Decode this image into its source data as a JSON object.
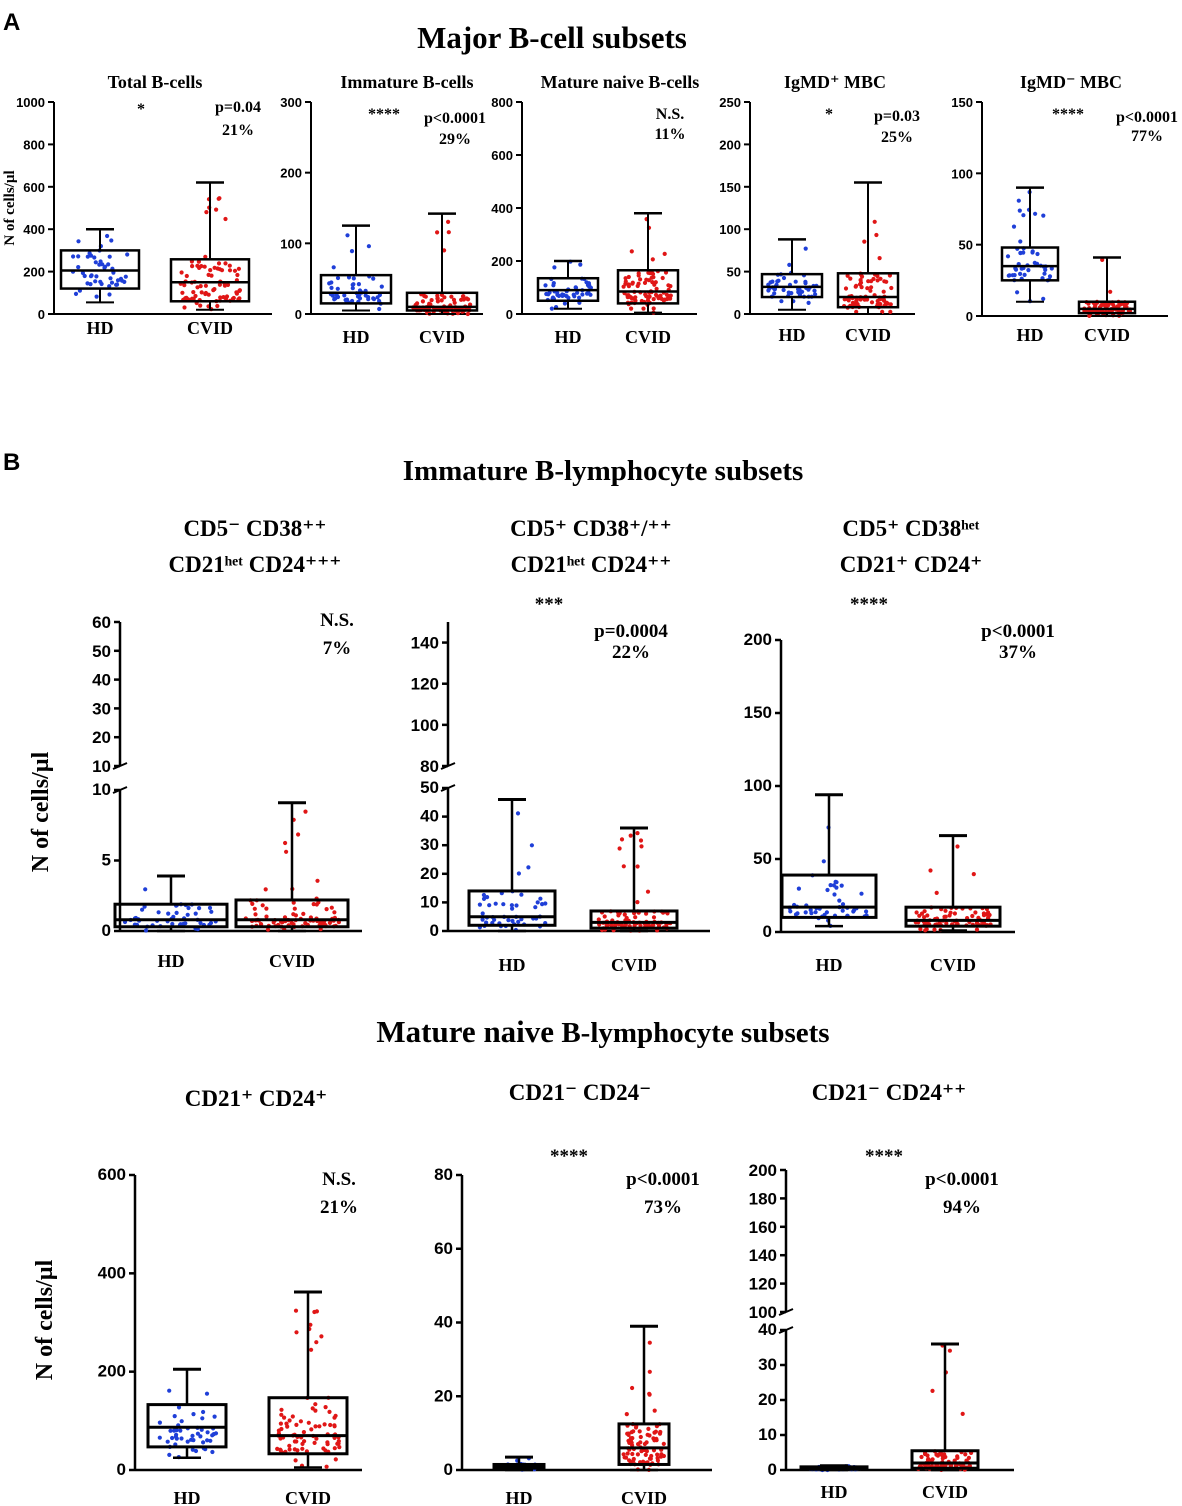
{
  "figure": {
    "panel_a_letter": "A",
    "panel_b_letter": "B",
    "section_a_title": "Major B-cell subsets",
    "section_b1_title": "Immature B-lymphocyte subsets",
    "section_b2_title_big": "Mature naive",
    "section_b2_title_small": " B-lymphocyte subsets"
  },
  "colors": {
    "hd": "#1f3fd8",
    "cvid": "#e01616",
    "axis": "#000000"
  },
  "chart_data": [
    {
      "id": "a1",
      "type": "box",
      "title": "Total B-cells",
      "ylabel": "N of cells/µl",
      "categories": [
        "HD",
        "CVID"
      ],
      "ylim": [
        0,
        1000
      ],
      "ticks": [
        0,
        200,
        400,
        600,
        800,
        1000
      ],
      "tick_labels": [
        "0",
        "200",
        "400",
        "600",
        "800",
        "1000"
      ],
      "boxes": [
        {
          "min": 55,
          "q1": 120,
          "median": 205,
          "q3": 300,
          "max": 400
        },
        {
          "min": 20,
          "q1": 60,
          "median": 150,
          "q3": 258,
          "max": 620
        }
      ],
      "star": "*",
      "pvalue": "p=0.04",
      "percent": "21%"
    },
    {
      "id": "a2",
      "type": "box",
      "title": "Immature B-cells",
      "ylabel": "",
      "categories": [
        "HD",
        "CVID"
      ],
      "ylim": [
        0,
        300
      ],
      "ticks": [
        0,
        100,
        200,
        300
      ],
      "tick_labels": [
        "0",
        "100",
        "200",
        "300"
      ],
      "boxes": [
        {
          "min": 5,
          "q1": 15,
          "median": 30,
          "q3": 55,
          "max": 125
        },
        {
          "min": 0,
          "q1": 5,
          "median": 10,
          "q3": 30,
          "max": 142
        }
      ],
      "star": "****",
      "pvalue": "p<0.0001",
      "percent": "29%"
    },
    {
      "id": "a3",
      "type": "box",
      "title": "Mature naive B-cells",
      "ylabel": "",
      "categories": [
        "HD",
        "CVID"
      ],
      "ylim": [
        0,
        800
      ],
      "ticks": [
        0,
        200,
        400,
        600,
        800
      ],
      "tick_labels": [
        "0",
        "200",
        "400",
        "600",
        "800"
      ],
      "boxes": [
        {
          "min": 20,
          "q1": 50,
          "median": 90,
          "q3": 135,
          "max": 200
        },
        {
          "min": 5,
          "q1": 40,
          "median": 85,
          "q3": 165,
          "max": 380
        }
      ],
      "star": "",
      "pvalue": "N.S.",
      "percent": "11%"
    },
    {
      "id": "a4",
      "type": "box",
      "title": "IgMD⁺ MBC",
      "ylabel": "",
      "categories": [
        "HD",
        "CVID"
      ],
      "ylim": [
        0,
        250
      ],
      "ticks": [
        0,
        50,
        100,
        150,
        200,
        250
      ],
      "tick_labels": [
        "0",
        "50",
        "100",
        "150",
        "200",
        "250"
      ],
      "boxes": [
        {
          "min": 5,
          "q1": 20,
          "median": 32,
          "q3": 47,
          "max": 88
        },
        {
          "min": 0,
          "q1": 8,
          "median": 20,
          "q3": 48,
          "max": 155
        }
      ],
      "star": "*",
      "pvalue": "p=0.03",
      "percent": "25%"
    },
    {
      "id": "a5",
      "type": "box",
      "title": "IgMD⁻ MBC",
      "ylabel": "",
      "categories": [
        "HD",
        "CVID"
      ],
      "ylim": [
        0,
        150
      ],
      "ticks": [
        0,
        50,
        100,
        150
      ],
      "tick_labels": [
        "0",
        "50",
        "100",
        "150"
      ],
      "boxes": [
        {
          "min": 10,
          "q1": 25,
          "median": 35,
          "q3": 48,
          "max": 90
        },
        {
          "min": 0,
          "q1": 2,
          "median": 5,
          "q3": 10,
          "max": 41
        }
      ],
      "star": "****",
      "pvalue": "p<0.0001",
      "percent": "77%"
    },
    {
      "id": "b1",
      "type": "box",
      "title_line1": "CD5⁻ CD38⁺⁺",
      "title_line2": "CD21ʰᵉᵗ CD24⁺⁺⁺",
      "ylabel": "N of cells/µl",
      "categories": [
        "HD",
        "CVID"
      ],
      "ylim": [
        0,
        10
      ],
      "ticks": [
        0,
        5,
        10
      ],
      "tick_labels": [
        "0",
        "5",
        "10"
      ],
      "upper_ylim": [
        10,
        60
      ],
      "upper_ticks": [
        10,
        20,
        30,
        40,
        50,
        60
      ],
      "upper_tick_labels": [
        "10",
        "20",
        "30",
        "40",
        "50",
        "60"
      ],
      "boxes": [
        {
          "min": 0,
          "q1": 0.3,
          "median": 0.8,
          "q3": 1.9,
          "max": 3.9
        },
        {
          "min": 0,
          "q1": 0.3,
          "median": 0.8,
          "q3": 2.2,
          "max": 9.1
        }
      ],
      "star": "",
      "pvalue": "N.S.",
      "percent": "7%"
    },
    {
      "id": "b2",
      "type": "box",
      "title_line1": "CD5⁺ CD38⁺/⁺⁺",
      "title_line2": "CD21ʰᵉᵗ CD24⁺⁺",
      "ylabel": "",
      "categories": [
        "HD",
        "CVID"
      ],
      "ylim": [
        0,
        50
      ],
      "ticks": [
        0,
        10,
        20,
        30,
        40,
        50
      ],
      "tick_labels": [
        "0",
        "10",
        "20",
        "30",
        "40",
        "50"
      ],
      "upper_ylim": [
        80,
        150
      ],
      "upper_ticks": [
        80,
        100,
        120,
        140
      ],
      "upper_tick_labels": [
        "80",
        "100",
        "120",
        "140"
      ],
      "boxes": [
        {
          "min": 0,
          "q1": 2,
          "median": 5,
          "q3": 14,
          "max": 46
        },
        {
          "min": 0,
          "q1": 1,
          "median": 3,
          "q3": 7,
          "max": 36
        }
      ],
      "star": "***",
      "pvalue": "p=0.0004",
      "percent": "22%"
    },
    {
      "id": "b3",
      "type": "box",
      "title_line1": "CD5⁺ CD38ʰᵉᵗ",
      "title_line2": "CD21⁺ CD24⁺",
      "ylabel": "",
      "categories": [
        "HD",
        "CVID"
      ],
      "ylim": [
        0,
        200
      ],
      "ticks": [
        0,
        50,
        100,
        150,
        200
      ],
      "tick_labels": [
        "0",
        "50",
        "100",
        "150",
        "200"
      ],
      "boxes": [
        {
          "min": 4,
          "q1": 10,
          "median": 17,
          "q3": 39,
          "max": 94
        },
        {
          "min": 1,
          "q1": 4,
          "median": 8,
          "q3": 17,
          "max": 66
        }
      ],
      "star": "****",
      "pvalue": "p<0.0001",
      "percent": "37%"
    },
    {
      "id": "b4",
      "type": "box",
      "title": "CD21⁺ CD24⁺",
      "ylabel": "N of cells/µl",
      "categories": [
        "HD",
        "CVID"
      ],
      "ylim": [
        0,
        600
      ],
      "ticks": [
        0,
        200,
        400,
        600
      ],
      "tick_labels": [
        "0",
        "200",
        "400",
        "600"
      ],
      "boxes": [
        {
          "min": 25,
          "q1": 47,
          "median": 87,
          "q3": 133,
          "max": 205
        },
        {
          "min": 5,
          "q1": 33,
          "median": 70,
          "q3": 147,
          "max": 362
        }
      ],
      "star": "",
      "pvalue": "N.S.",
      "percent": "21%"
    },
    {
      "id": "b5",
      "type": "box",
      "title": "CD21⁻ CD24⁻",
      "ylabel": "",
      "categories": [
        "HD",
        "CVID"
      ],
      "ylim": [
        0,
        80
      ],
      "ticks": [
        0,
        20,
        40,
        60,
        80
      ],
      "tick_labels": [
        "0",
        "20",
        "40",
        "60",
        "80"
      ],
      "boxes": [
        {
          "min": 0,
          "q1": 0.5,
          "median": 1,
          "q3": 1.5,
          "max": 3.5
        },
        {
          "min": 0,
          "q1": 1.5,
          "median": 6,
          "q3": 12.5,
          "max": 39
        }
      ],
      "star": "****",
      "pvalue": "p<0.0001",
      "percent": "73%"
    },
    {
      "id": "b6",
      "type": "box",
      "title": "CD21⁻ CD24⁺⁺",
      "ylabel": "",
      "categories": [
        "HD",
        "CVID"
      ],
      "ylim": [
        0,
        40
      ],
      "ticks": [
        0,
        10,
        20,
        30,
        40
      ],
      "tick_labels": [
        "0",
        "10",
        "20",
        "30",
        "40"
      ],
      "upper_ylim": [
        100,
        200
      ],
      "upper_ticks": [
        100,
        120,
        140,
        160,
        180,
        200
      ],
      "upper_tick_labels": [
        "100",
        "120",
        "140",
        "160",
        "180",
        "200"
      ],
      "boxes": [
        {
          "min": 0,
          "q1": 0.2,
          "median": 0.5,
          "q3": 0.9,
          "max": 1.2
        },
        {
          "min": 0,
          "q1": 0.5,
          "median": 2,
          "q3": 5.5,
          "max": 36
        }
      ],
      "star": "****",
      "pvalue": "p<0.0001",
      "percent": "94%"
    }
  ]
}
